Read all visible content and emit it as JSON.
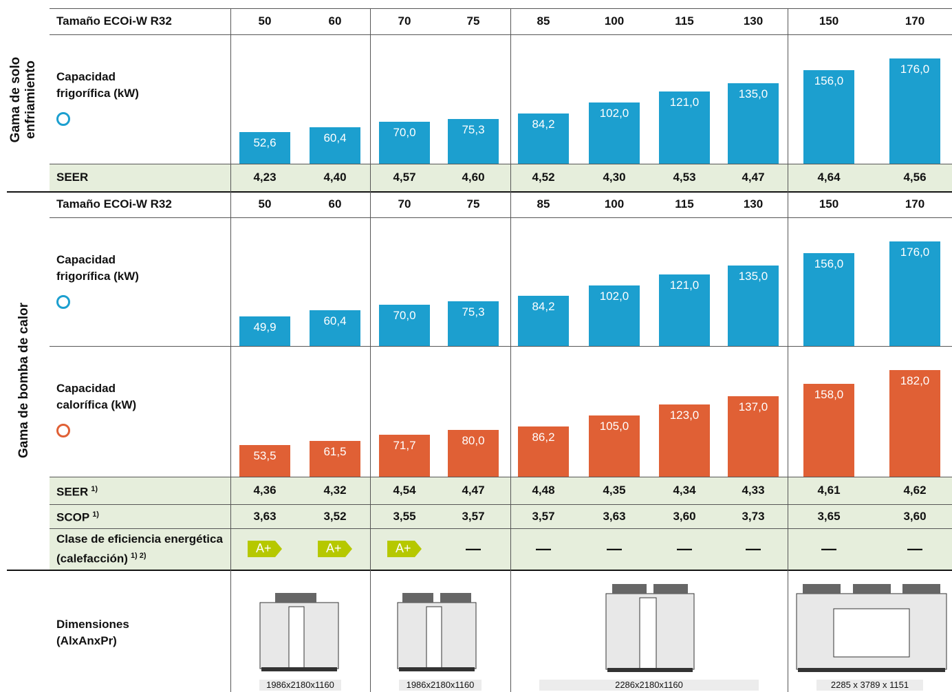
{
  "sections": [
    {
      "title": "Gama de solo enfriamiento",
      "size_label": "Tamaño ECOi-W R32",
      "sizes": [
        50,
        60,
        70,
        75,
        85,
        100,
        115,
        130,
        150,
        170
      ],
      "cooling": {
        "label": "Capacidad frigorífica (kW)",
        "color": "#1c9fcf",
        "values": [
          52.6,
          60.4,
          70.0,
          75.3,
          84.2,
          102.0,
          121.0,
          135.0,
          156.0,
          176.0
        ],
        "value_labels": [
          "52,6",
          "60,4",
          "70,0",
          "75,3",
          "84,2",
          "102,0",
          "121,0",
          "135,0",
          "156,0",
          "176,0"
        ]
      },
      "seer": {
        "label": "SEER",
        "values": [
          "4,23",
          "4,40",
          "4,57",
          "4,60",
          "4,52",
          "4,30",
          "4,53",
          "4,47",
          "4,64",
          "4,56"
        ]
      }
    },
    {
      "title": "Gama de bomba de calor",
      "size_label": "Tamaño ECOi-W R32",
      "sizes": [
        50,
        60,
        70,
        75,
        85,
        100,
        115,
        130,
        150,
        170
      ],
      "cooling": {
        "label": "Capacidad frigorífica (kW)",
        "color": "#1c9fcf",
        "values": [
          49.9,
          60.4,
          70.0,
          75.3,
          84.2,
          102.0,
          121.0,
          135.0,
          156.0,
          176.0
        ],
        "value_labels": [
          "49,9",
          "60,4",
          "70,0",
          "75,3",
          "84,2",
          "102,0",
          "121,0",
          "135,0",
          "156,0",
          "176,0"
        ]
      },
      "heating": {
        "label": "Capacidad calorífica (kW)",
        "color": "#e06035",
        "values": [
          53.5,
          61.5,
          71.7,
          80.0,
          86.2,
          105.0,
          123.0,
          137.0,
          158.0,
          182.0
        ],
        "value_labels": [
          "53,5",
          "61,5",
          "71,7",
          "80,0",
          "86,2",
          "105,0",
          "123,0",
          "137,0",
          "158,0",
          "182,0"
        ]
      },
      "seer": {
        "label": "SEER",
        "note": "1)",
        "values": [
          "4,36",
          "4,32",
          "4,54",
          "4,47",
          "4,48",
          "4,35",
          "4,34",
          "4,33",
          "4,61",
          "4,62"
        ]
      },
      "scop": {
        "label": "SCOP",
        "note": "1)",
        "values": [
          "3,63",
          "3,52",
          "3,55",
          "3,57",
          "3,57",
          "3,63",
          "3,60",
          "3,73",
          "3,65",
          "3,60"
        ]
      },
      "efficiency_class": {
        "label": "Clase de eficiencia energética (calefacción)",
        "note": "1) 2)",
        "values": [
          "A+",
          "A+",
          "A+",
          "—",
          "—",
          "—",
          "—",
          "—",
          "—",
          "—"
        ]
      }
    }
  ],
  "dimensions": {
    "label": "Dimensiones (AlxAnxPr)",
    "values": [
      "1986x2180x1160",
      "1986x2180x1160",
      "2286x2180x1160",
      "2285 x 3789 x 1151"
    ]
  }
}
